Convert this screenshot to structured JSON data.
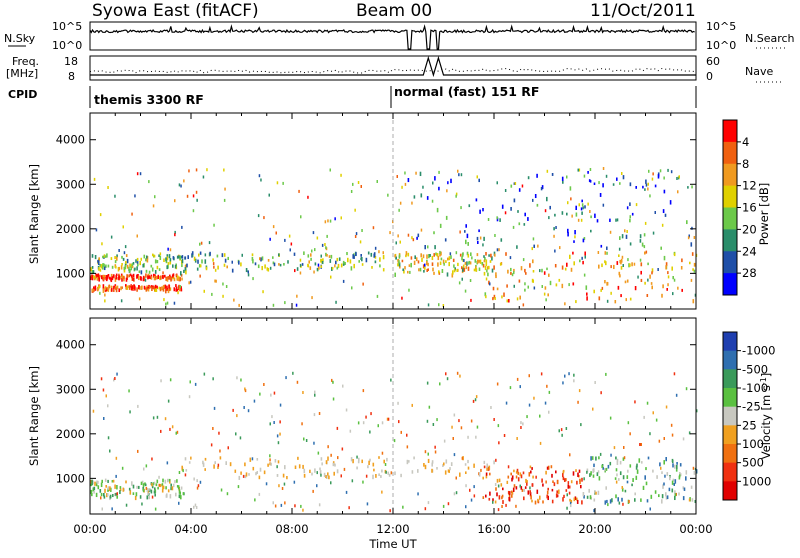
{
  "header": {
    "station": "Syowa East (fitACF)",
    "beam": "Beam 00",
    "date": "11/Oct/2011"
  },
  "top_panels": {
    "nsky_label": "N.Sky",
    "nsky_ticks": [
      "10^5",
      "10^0"
    ],
    "nsearch_label": "N.Search",
    "nsearch_ticks": [
      "10^5",
      "10^0"
    ],
    "freq_label_1": "Freq.",
    "freq_label_2": "[MHz]",
    "freq_ticks": [
      "18",
      "8"
    ],
    "nave_label": "Nave",
    "nave_ticks": [
      "60",
      "0"
    ],
    "cpid_label": "CPID",
    "cpid_modes": [
      {
        "label": "themis 3300 RF",
        "start": "00:00",
        "end": "12:00"
      },
      {
        "label": "normal (fast) 151 RF",
        "start": "12:00",
        "end": "24:00"
      }
    ]
  },
  "chart_data": [
    {
      "type": "heatmap",
      "title": "",
      "xlabel": "Time UT",
      "ylabel": "Slant Range [km]",
      "x_ticks": [
        "00:00",
        "04:00",
        "08:00",
        "12:00",
        "16:00",
        "20:00",
        "00:00"
      ],
      "y_ticks": [
        1000,
        2000,
        3000,
        4000
      ],
      "ylim": [
        200,
        4600
      ],
      "colorbar": {
        "label": "Power [dB]",
        "ticks": [
          "4",
          "8",
          "12",
          "16",
          "20",
          "24",
          "28"
        ],
        "colors": [
          "#0000ff",
          "#1f4fa8",
          "#2a8d6a",
          "#6cc94a",
          "#e0d000",
          "#f09a20",
          "#f06010",
          "#ff0000"
        ]
      },
      "echo_regions": [
        {
          "t": [
            0.0,
            3.6
          ],
          "r": [
            900,
            1000
          ],
          "level": 0.85
        },
        {
          "t": [
            0.0,
            3.6
          ],
          "r": [
            650,
            760
          ],
          "level": 0.8
        },
        {
          "t": [
            0.0,
            3.8
          ],
          "r": [
            1050,
            1450
          ],
          "level": 0.45
        },
        {
          "t": [
            3.6,
            11.8
          ],
          "r": [
            1100,
            1500
          ],
          "level": 0.4
        },
        {
          "t": [
            12.0,
            16.0
          ],
          "r": [
            1000,
            1500
          ],
          "level": 0.55
        },
        {
          "t": [
            15.5,
            24.0
          ],
          "r": [
            400,
            1500
          ],
          "level": 0.7
        },
        {
          "t": [
            12.5,
            24.0
          ],
          "r": [
            1600,
            3300
          ],
          "level": 0.2
        }
      ]
    },
    {
      "type": "heatmap",
      "title": "",
      "xlabel": "Time UT",
      "ylabel": "Slant Range [km]",
      "x_ticks": [
        "00:00",
        "04:00",
        "08:00",
        "12:00",
        "16:00",
        "20:00",
        "00:00"
      ],
      "y_ticks": [
        1000,
        2000,
        3000,
        4000
      ],
      "ylim": [
        200,
        4600
      ],
      "colorbar": {
        "label": "Velocity [m s^-1]",
        "ticks": [
          "1000",
          "500",
          "100",
          "25",
          "-25",
          "-100",
          "-500",
          "-1000"
        ],
        "colors": [
          "#1f3fb0",
          "#2f6fb0",
          "#3a9a5a",
          "#5ac040",
          "#c8c8c0",
          "#f0a020",
          "#f07010",
          "#f03010",
          "#e00000"
        ]
      },
      "echo_regions": [
        {
          "t": [
            0.0,
            3.6
          ],
          "r": [
            600,
            1000
          ],
          "level": "positive-small"
        },
        {
          "t": [
            3.6,
            16.0
          ],
          "r": [
            1050,
            1500
          ],
          "level": "near-zero"
        },
        {
          "t": [
            15.5,
            19.5
          ],
          "r": [
            500,
            1300
          ],
          "level": "negative-large"
        },
        {
          "t": [
            19.5,
            24.0
          ],
          "r": [
            500,
            1500
          ],
          "level": "positive-medium"
        }
      ]
    }
  ]
}
